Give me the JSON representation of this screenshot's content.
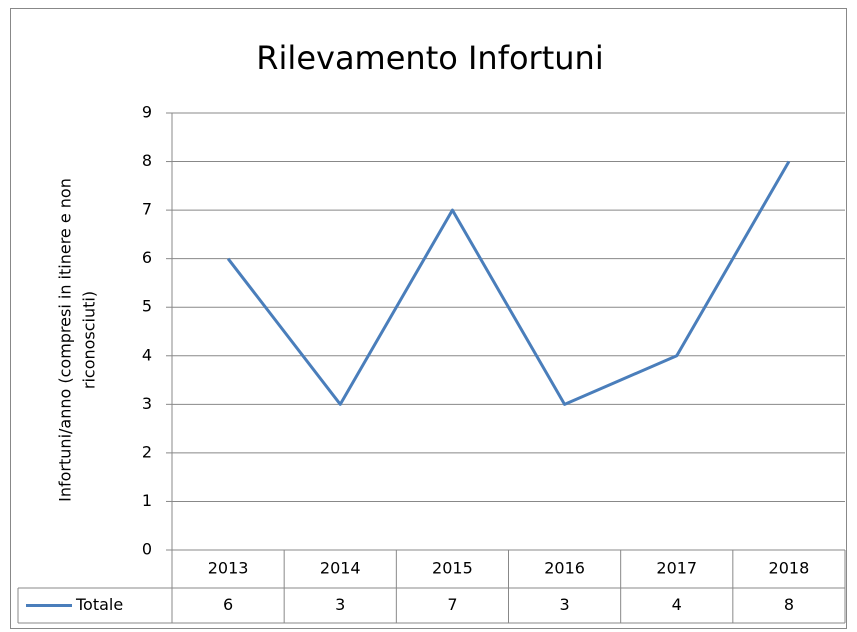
{
  "chart_data": {
    "type": "line",
    "title": "Rilevamento Infortuni",
    "ylabel": [
      "Infortuni/anno (compresi in itinere e non",
      "riconosciuti)"
    ],
    "categories": [
      "2013",
      "2014",
      "2015",
      "2016",
      "2017",
      "2018"
    ],
    "series": [
      {
        "name": "Totale",
        "color": "#4a7ebb",
        "values": [
          6,
          3,
          7,
          3,
          4,
          8
        ]
      }
    ],
    "ylim": [
      0,
      9
    ],
    "yticks": [
      0,
      1,
      2,
      3,
      4,
      5,
      6,
      7,
      8,
      9
    ],
    "grid": true,
    "data_table": true
  }
}
